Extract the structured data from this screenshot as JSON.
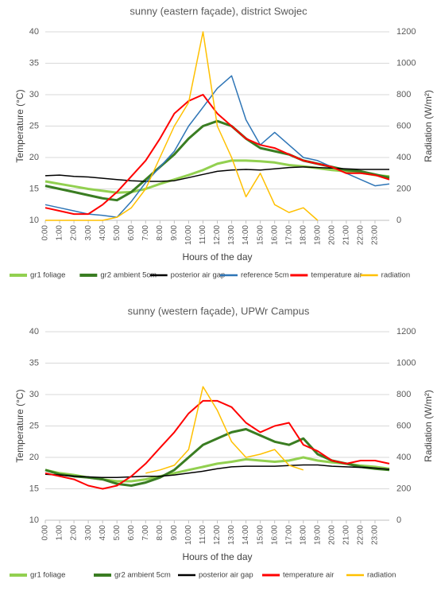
{
  "chart_data": [
    {
      "type": "line",
      "title": "sunny (eastern façade), district Swojec",
      "xlabel": "Hours of the day",
      "ylabel": "Temperature (°C)",
      "y2label": "Radiation (W/m²)",
      "x": [
        0,
        1,
        2,
        3,
        4,
        5,
        6,
        7,
        8,
        9,
        10,
        11,
        12,
        13,
        14,
        15,
        16,
        17,
        18,
        19,
        20,
        21,
        22,
        23,
        24
      ],
      "xlim": [
        0,
        24
      ],
      "xticks": [
        {
          "value": 0,
          "label": "0:00"
        },
        {
          "value": 1,
          "label": "1:00"
        },
        {
          "value": 2,
          "label": "2:00"
        },
        {
          "value": 3,
          "label": "3:00"
        },
        {
          "value": 4,
          "label": "4:00"
        },
        {
          "value": 5,
          "label": "5:00"
        },
        {
          "value": 6,
          "label": "6:00"
        },
        {
          "value": 7,
          "label": "7:00"
        },
        {
          "value": 8,
          "label": "8:00"
        },
        {
          "value": 9,
          "label": "9:00"
        },
        {
          "value": 10,
          "label": "10:00"
        },
        {
          "value": 11,
          "label": "11:00"
        },
        {
          "value": 12,
          "label": "12:00"
        },
        {
          "value": 13,
          "label": "13:00"
        },
        {
          "value": 14,
          "label": "14:00"
        },
        {
          "value": 15,
          "label": "15:00"
        },
        {
          "value": 16,
          "label": "16:00"
        },
        {
          "value": 17,
          "label": "17:00"
        },
        {
          "value": 18,
          "label": "18:00"
        },
        {
          "value": 19,
          "label": "19:00"
        },
        {
          "value": 20,
          "label": "20:00"
        },
        {
          "value": 21,
          "label": "21:00"
        },
        {
          "value": 22,
          "label": "22:00"
        },
        {
          "value": 23,
          "label": "23:00"
        }
      ],
      "ylim": [
        10,
        40
      ],
      "yticks": [
        10,
        15,
        20,
        25,
        30,
        35,
        40
      ],
      "y2lim": [
        0,
        1200
      ],
      "y2ticks": [
        0,
        200,
        400,
        600,
        800,
        1000,
        1200
      ],
      "grid": true,
      "series": [
        {
          "name": "gr1 foliage",
          "color": "#92d050",
          "width": 3,
          "values": [
            16.2,
            15.8,
            15.4,
            15,
            14.7,
            14.4,
            14.5,
            15,
            15.8,
            16.5,
            17.2,
            18,
            19,
            19.5,
            19.5,
            19.4,
            19.2,
            18.8,
            18.6,
            18.3,
            18,
            17.8,
            17.6,
            17.2,
            17
          ]
        },
        {
          "name": "gr2 ambient 5cm",
          "color": "#3a7d22",
          "width": 3,
          "values": [
            15.5,
            15,
            14.5,
            14,
            13.5,
            13.2,
            14.5,
            16.5,
            18.5,
            20.5,
            23,
            25,
            25.8,
            25,
            23,
            21.5,
            21,
            20.5,
            19.5,
            19,
            18.5,
            18,
            17.8,
            17.3,
            16.8
          ]
        },
        {
          "name": "posterior air gap",
          "color": "#000000",
          "width": 1.5,
          "values": [
            17.1,
            17.2,
            17,
            16.9,
            16.7,
            16.5,
            16.3,
            16.2,
            16.2,
            16.3,
            16.8,
            17.3,
            17.8,
            18,
            18.1,
            18,
            18.2,
            18.4,
            18.5,
            18.4,
            18.3,
            18.2,
            18.1,
            18.1,
            18.1
          ]
        },
        {
          "name": "reference 5cm",
          "color": "#2e75b6",
          "width": 1.5,
          "values": [
            12.5,
            12,
            11.5,
            11,
            10.8,
            10.5,
            13,
            16,
            18.5,
            21,
            25,
            28,
            31,
            33,
            26,
            22,
            24,
            22,
            20,
            19.5,
            18.5,
            17.5,
            16.5,
            15.5,
            15.8
          ]
        },
        {
          "name": "temperature air",
          "color": "#ff0000",
          "width": 2,
          "values": [
            12,
            11.5,
            11,
            11,
            12.5,
            14.5,
            17,
            19.5,
            23,
            27,
            29,
            30,
            27,
            25,
            23,
            22,
            21.5,
            20.5,
            19.5,
            19,
            18.5,
            17.5,
            17.5,
            17.2,
            16.5
          ]
        },
        {
          "name": "radiation",
          "color": "#ffc000",
          "width": 1.5,
          "axis": "y2",
          "values": [
            0,
            0,
            0,
            0,
            0,
            20,
            80,
            200,
            400,
            600,
            750,
            1200,
            600,
            400,
            150,
            300,
            100,
            50,
            80,
            0,
            null,
            null,
            null,
            null,
            null
          ]
        }
      ]
    },
    {
      "type": "line",
      "title": "sunny (western façade), UPWr Campus",
      "xlabel": "Hours of the day",
      "ylabel": "Temperature (°C)",
      "y2label": "Radiation (W/m²)",
      "x": [
        0,
        1,
        2,
        3,
        4,
        5,
        6,
        7,
        8,
        9,
        10,
        11,
        12,
        13,
        14,
        15,
        16,
        17,
        18,
        19,
        20,
        21,
        22,
        23,
        24
      ],
      "xlim": [
        0,
        24
      ],
      "xticks": [
        {
          "value": 0,
          "label": "0:00"
        },
        {
          "value": 1,
          "label": "1:00"
        },
        {
          "value": 2,
          "label": "2:00"
        },
        {
          "value": 3,
          "label": "3:00"
        },
        {
          "value": 4,
          "label": "4:00"
        },
        {
          "value": 5,
          "label": "5:00"
        },
        {
          "value": 6,
          "label": "6:00"
        },
        {
          "value": 7,
          "label": "7:00"
        },
        {
          "value": 8,
          "label": "8:00"
        },
        {
          "value": 9,
          "label": "9:00"
        },
        {
          "value": 10,
          "label": "10:00"
        },
        {
          "value": 11,
          "label": "11:00"
        },
        {
          "value": 12,
          "label": "12:00"
        },
        {
          "value": 13,
          "label": "13:00"
        },
        {
          "value": 14,
          "label": "14:00"
        },
        {
          "value": 15,
          "label": "15:00"
        },
        {
          "value": 16,
          "label": "16:00"
        },
        {
          "value": 17,
          "label": "17:00"
        },
        {
          "value": 18,
          "label": "18:00"
        },
        {
          "value": 19,
          "label": "19:00"
        },
        {
          "value": 20,
          "label": "20:00"
        },
        {
          "value": 21,
          "label": "21:00"
        },
        {
          "value": 22,
          "label": "22:00"
        },
        {
          "value": 23,
          "label": "23:00"
        }
      ],
      "ylim": [
        10,
        40
      ],
      "yticks": [
        10,
        15,
        20,
        25,
        30,
        35,
        40
      ],
      "y2lim": [
        0,
        1200
      ],
      "y2ticks": [
        0,
        200,
        400,
        600,
        800,
        1000,
        1200
      ],
      "grid": true,
      "series": [
        {
          "name": "gr1 foliage",
          "color": "#92d050",
          "width": 3,
          "values": [
            18,
            17.5,
            17.2,
            16.8,
            16.5,
            16.2,
            16.2,
            16.5,
            17,
            17.5,
            18,
            18.5,
            19,
            19.3,
            19.7,
            19.5,
            19.3,
            19.5,
            20,
            19.5,
            19.2,
            19,
            18.7,
            18.5,
            18.2
          ]
        },
        {
          "name": "gr2 ambient 5cm",
          "color": "#3a7d22",
          "width": 3,
          "values": [
            18,
            17.3,
            17,
            16.8,
            16.5,
            15.8,
            15.5,
            16,
            16.8,
            18,
            20,
            22,
            23,
            24,
            24.5,
            23.5,
            22.5,
            22,
            23,
            20.5,
            19.5,
            19,
            18.5,
            18.2,
            18
          ]
        },
        {
          "name": "posterior air gap",
          "color": "#000000",
          "width": 1.5,
          "values": [
            17.3,
            17.2,
            17,
            16.9,
            16.8,
            16.8,
            16.9,
            17,
            17,
            17.2,
            17.5,
            17.8,
            18.2,
            18.5,
            18.6,
            18.6,
            18.6,
            18.7,
            18.8,
            18.8,
            18.6,
            18.5,
            18.4,
            18.3,
            18.1
          ]
        },
        {
          "name": "temperature air",
          "color": "#ff0000",
          "width": 2,
          "values": [
            17.5,
            17,
            16.5,
            15.5,
            15,
            15.5,
            17,
            19,
            21.5,
            24,
            27,
            29,
            29,
            28,
            25.5,
            24,
            25,
            25.5,
            22,
            21,
            19.5,
            19,
            19.5,
            19.5,
            19
          ]
        },
        {
          "name": "radiation",
          "color": "#ffc000",
          "width": 1.5,
          "axis": "y2",
          "values": [
            null,
            null,
            null,
            null,
            null,
            null,
            null,
            300,
            320,
            350,
            450,
            850,
            700,
            500,
            400,
            420,
            450,
            350,
            320,
            null,
            null,
            null,
            null,
            null,
            null
          ]
        }
      ]
    }
  ]
}
